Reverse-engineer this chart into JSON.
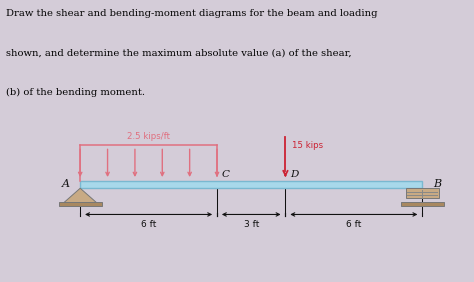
{
  "line1": "Draw the shear and bending-moment diagrams for the beam and loading",
  "line2": "shown, and determine the maximum absolute value (a) of the shear,",
  "line3": "(b) of the bending moment.",
  "load_label": "2.5 kips/ft",
  "point_load_label": "15 kips",
  "label_A": "A",
  "label_B": "B",
  "label_C": "C",
  "label_D": "D",
  "dim1": "6 ft",
  "dim2": "3 ft",
  "dim3": "6 ft",
  "beam_color": "#a8d8ea",
  "beam_edge_color": "#7ab8d0",
  "dist_load_color": "#e07080",
  "point_load_color": "#cc2233",
  "support_tan": "#c8aa84",
  "support_dark": "#a88860",
  "outer_bg": "#d4ccd8",
  "panel_bg": "#f0eeee",
  "text_bg": "#f8f6f6",
  "dim_color": "#111111",
  "label_color": "#111111",
  "italic_a": "(a)",
  "italic_b": "(b)"
}
